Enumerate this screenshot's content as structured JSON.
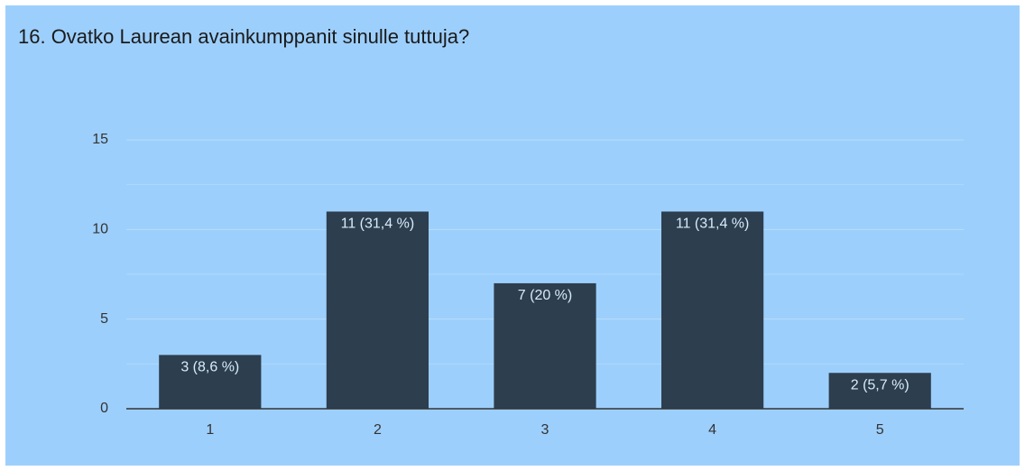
{
  "chart_data": {
    "type": "bar",
    "title": "16. Ovatko Laurean avainkumppanit sinulle tuttuja?",
    "categories": [
      "1",
      "2",
      "3",
      "4",
      "5"
    ],
    "values": [
      3,
      11,
      7,
      11,
      2
    ],
    "value_labels": [
      "3 (8,6 %)",
      "11 (31,4 %)",
      "7 (20 %)",
      "11 (31,4 %)",
      "2 (5,7 %)"
    ],
    "color": "#2d3e4e",
    "ylim": [
      0,
      15
    ],
    "yticks": [
      0,
      5,
      10,
      15
    ],
    "minor_yticks": [
      2.5,
      7.5,
      12.5
    ],
    "grid": true
  }
}
